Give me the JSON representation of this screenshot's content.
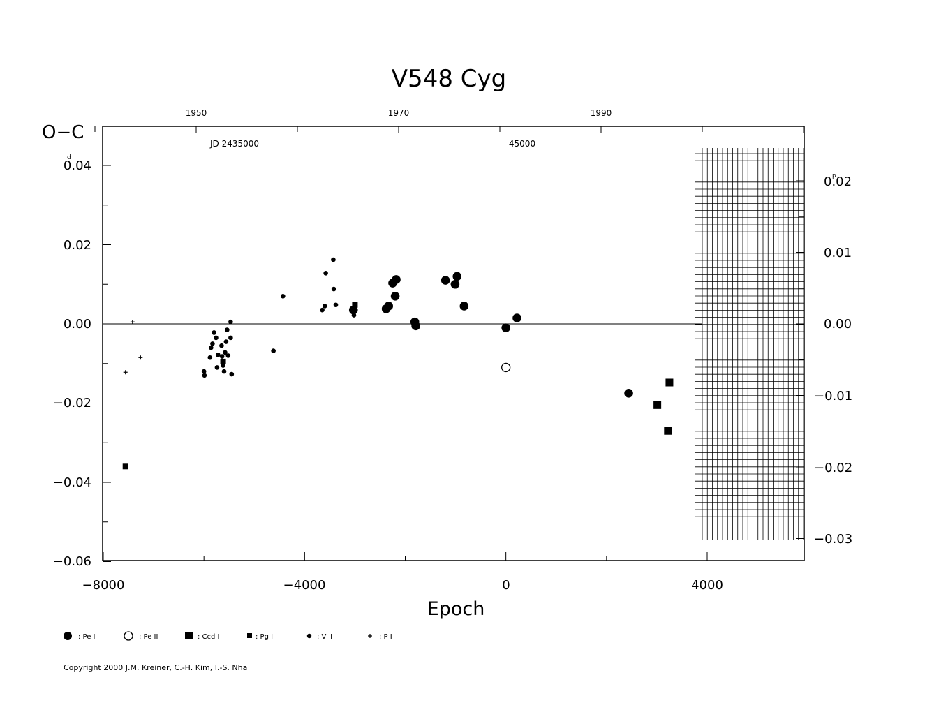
{
  "chart_data": {
    "type": "scatter",
    "title": "V548  Cyg",
    "xlabel": "Epoch",
    "ylabel": "O−C",
    "ylabel_unit": "d",
    "y2_unit": "p",
    "xlim": [
      -8000,
      6000
    ],
    "ylim": [
      -0.06,
      0.05
    ],
    "x_ticks": [
      "−8000",
      "−4000",
      "0",
      "4000"
    ],
    "y_ticks": [
      "−0.06",
      "−0.04",
      "−0.02",
      "0.00",
      "0.02",
      "0.04"
    ],
    "y2_ticks": [
      "−0.03",
      "−0.02",
      "−0.01",
      "0.00",
      "0.01",
      "0.02"
    ],
    "year_ticks": [
      "1950",
      "1970",
      "1990"
    ],
    "jd_labels": [
      "JD  2435000",
      "45000"
    ],
    "future_region_start_epoch": 4000,
    "zero_line": true,
    "series": [
      {
        "name": ": Pe I",
        "marker": "filled-circle-large",
        "points": [
          [
            -3030,
            0.0035
          ],
          [
            -2380,
            0.0038
          ],
          [
            -2330,
            0.0045
          ],
          [
            -2250,
            0.0103
          ],
          [
            -2180,
            0.0112
          ],
          [
            -2200,
            0.007
          ],
          [
            -1810,
            0.0005
          ],
          [
            -1790,
            -0.0005
          ],
          [
            -1200,
            0.011
          ],
          [
            -1010,
            0.01
          ],
          [
            -970,
            0.012
          ],
          [
            -830,
            0.0045
          ],
          [
            0,
            -0.001
          ],
          [
            220,
            0.0015
          ],
          [
            2440,
            -0.0175
          ]
        ]
      },
      {
        "name": ": Pe II",
        "marker": "open-circle",
        "points": [
          [
            0,
            -0.011
          ]
        ]
      },
      {
        "name": ": Ccd I",
        "marker": "filled-square",
        "points": [
          [
            3010,
            -0.0205
          ],
          [
            3220,
            -0.027
          ],
          [
            3250,
            -0.0148
          ]
        ]
      },
      {
        "name": ": Pg I",
        "marker": "small-square",
        "points": [
          [
            -7560,
            -0.036
          ],
          [
            -3000,
            0.0048
          ],
          [
            -5620,
            -0.0095
          ]
        ]
      },
      {
        "name": ": Vi I",
        "marker": "small-dot",
        "points": [
          [
            -6000,
            -0.012
          ],
          [
            -5990,
            -0.013
          ],
          [
            -5880,
            -0.0085
          ],
          [
            -5860,
            -0.006
          ],
          [
            -5830,
            -0.005
          ],
          [
            -5800,
            -0.0022
          ],
          [
            -5760,
            -0.0035
          ],
          [
            -5740,
            -0.011
          ],
          [
            -5720,
            -0.0078
          ],
          [
            -5650,
            -0.0055
          ],
          [
            -5640,
            -0.0082
          ],
          [
            -5620,
            -0.0105
          ],
          [
            -5600,
            -0.012
          ],
          [
            -5580,
            -0.0072
          ],
          [
            -5560,
            -0.0045
          ],
          [
            -5540,
            -0.0015
          ],
          [
            -5520,
            -0.008
          ],
          [
            -5470,
            -0.0035
          ],
          [
            -5470,
            0.0005
          ],
          [
            -5450,
            -0.0127
          ],
          [
            -4620,
            -0.0068
          ],
          [
            -4430,
            0.007
          ],
          [
            -3650,
            0.0035
          ],
          [
            -3600,
            0.0045
          ],
          [
            -3580,
            0.0128
          ],
          [
            -3430,
            0.0162
          ],
          [
            -3420,
            0.0088
          ],
          [
            -3380,
            0.0048
          ],
          [
            -3020,
            0.0022
          ]
        ]
      },
      {
        "name": ": P I",
        "marker": "plus",
        "points": [
          [
            -7420,
            0.0005
          ],
          [
            -7260,
            -0.0085
          ],
          [
            -7560,
            -0.0122
          ]
        ]
      }
    ]
  },
  "copyright": "Copyright 2000 J.M. Kreiner, C.-H. Kim, I.-S. Nha"
}
